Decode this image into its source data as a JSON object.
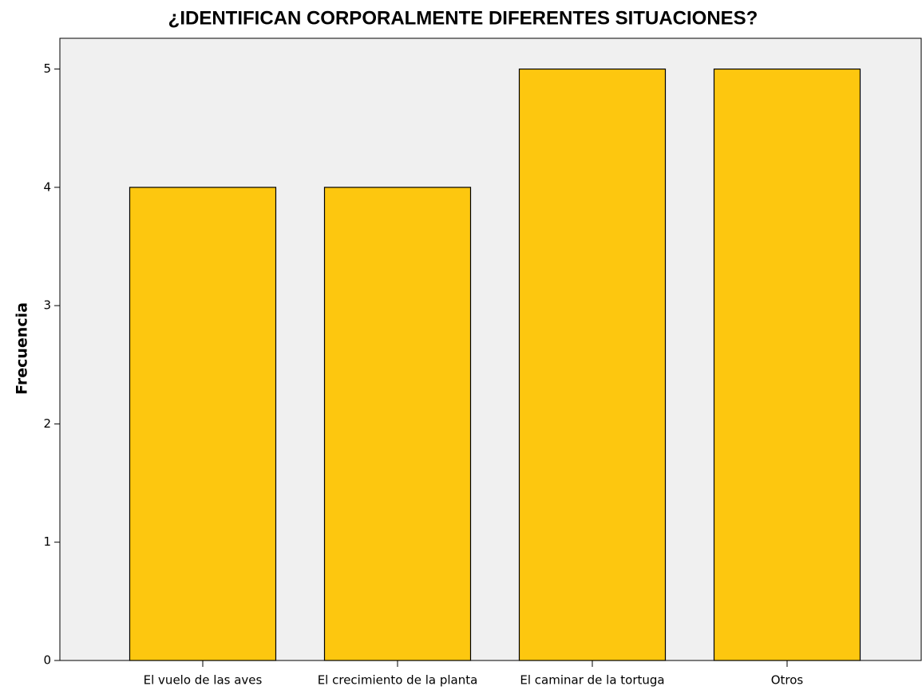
{
  "chart_data": {
    "type": "bar",
    "title": "¿IDENTIFICAN CORPORALMENTE DIFERENTES SITUACIONES?",
    "y_label": "Frecuencia",
    "categories": [
      "El vuelo de las aves",
      "El crecimiento de la planta",
      "El caminar de la tortuga",
      "Otros"
    ],
    "values": [
      4,
      4,
      5,
      5
    ],
    "color": "#fdc70f",
    "ylim": [
      0,
      5.26
    ],
    "yticks": [
      0,
      1,
      2,
      3,
      4,
      5
    ],
    "grid": false
  }
}
